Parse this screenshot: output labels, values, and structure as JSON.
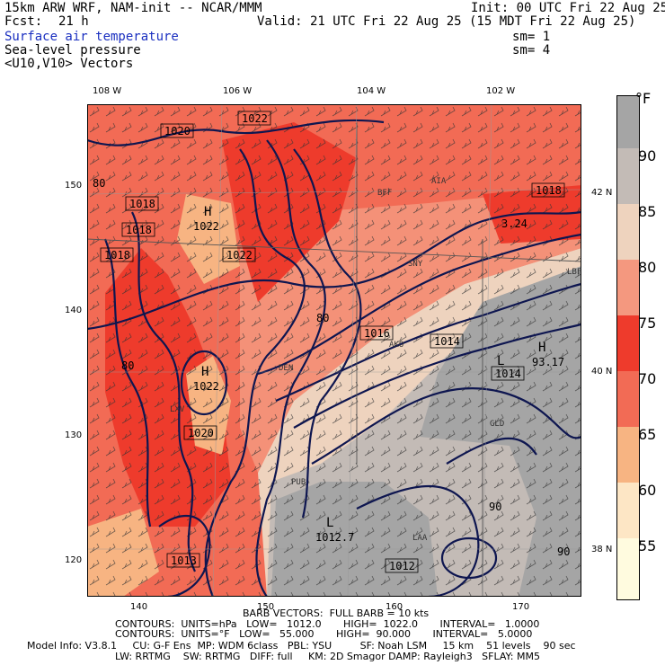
{
  "header": {
    "model": "15km ARW WRF, NAM-init -- NCAR/MMM",
    "init": "Init: 00 UTC Fri 22 Aug 25",
    "fcst_label": "Fcst:",
    "fcst_hours": "21 h",
    "valid": "Valid: 21 UTC Fri 22 Aug 25 (15 MDT Fri 22 Aug 25)",
    "fields": [
      {
        "name": "Surface air temperature",
        "sm": "sm= 1"
      },
      {
        "name": "Sea-level pressure",
        "sm": "sm= 4"
      },
      {
        "name": "<U10,V10> Vectors",
        "sm": ""
      }
    ]
  },
  "axes": {
    "top_lon": [
      "108 W",
      "106 W",
      "104 W",
      "102 W"
    ],
    "bottom_x": [
      "140",
      "150",
      "160",
      "170"
    ],
    "left_y": [
      "150",
      "140",
      "130",
      "120"
    ],
    "right_lat": [
      "42 N",
      "40 N",
      "38 N"
    ]
  },
  "colorbar": {
    "unit": "°F",
    "labels": [
      "90",
      "85",
      "80",
      "75",
      "70",
      "65",
      "60",
      "55"
    ],
    "colors": [
      "#a5a5a5",
      "#c3bbb6",
      "#eed3be",
      "#f4987f",
      "#ee3b2c",
      "#f26b55",
      "#f7b482",
      "#fde6c5",
      "#fffbdf"
    ]
  },
  "map_labels": [
    {
      "text": "1022",
      "boxed": true
    },
    {
      "text": "1020",
      "boxed": true
    },
    {
      "text": "1018",
      "boxed": true
    },
    {
      "text": "1018",
      "boxed": true
    },
    {
      "text": "1018",
      "boxed": true
    },
    {
      "text": "1018",
      "boxed": true
    },
    {
      "text": "1022",
      "boxed": true
    },
    {
      "text": "1016",
      "boxed": true
    },
    {
      "text": "1014",
      "boxed": true
    },
    {
      "text": "1014",
      "boxed": true
    },
    {
      "text": "1020",
      "boxed": true
    },
    {
      "text": "1013",
      "boxed": true
    },
    {
      "text": "1012",
      "boxed": true
    },
    {
      "text": "H",
      "boxed": false
    },
    {
      "text": "1022",
      "boxed": false
    },
    {
      "text": "H",
      "boxed": false
    },
    {
      "text": "1022",
      "boxed": false
    },
    {
      "text": "L",
      "boxed": false
    },
    {
      "text": "1012.7",
      "boxed": false
    },
    {
      "text": "H",
      "boxed": false
    },
    {
      "text": "93.17",
      "boxed": false
    },
    {
      "text": "L",
      "boxed": false
    },
    {
      "text": "80",
      "boxed": false
    },
    {
      "text": "80",
      "boxed": false
    },
    {
      "text": "80",
      "boxed": false
    },
    {
      "text": "90",
      "boxed": false
    },
    {
      "text": "90",
      "boxed": false
    },
    {
      "text": "3.24",
      "boxed": false
    },
    {
      "text": "BFF",
      "boxed": false
    },
    {
      "text": "AIA",
      "boxed": false
    },
    {
      "text": "SNY",
      "boxed": false
    },
    {
      "text": "AKO",
      "boxed": false
    },
    {
      "text": "DEN",
      "boxed": false
    },
    {
      "text": "GLD",
      "boxed": false
    },
    {
      "text": "LAA",
      "boxed": false
    },
    {
      "text": "LXV",
      "boxed": false
    },
    {
      "text": "PUB",
      "boxed": false
    },
    {
      "text": "LBF",
      "boxed": false
    }
  ],
  "footer": {
    "barb": "BARB VECTORS:  FULL BARB = 10 kts",
    "contours1": "CONTOURS:  UNITS=hPa   LOW=   1012.0       HIGH=  1022.0       INTERVAL=   1.0000",
    "contours2": "CONTOURS:  UNITS=°F   LOW=   55.000       HIGH=  90.000       INTERVAL=   5.0000",
    "model_info1": "Model Info: V3.8.1     CU: G-F Ens  MP: WDM 6class   PBL: YSU         SF: Noah LSM     15 km    51 levels    90 sec",
    "model_info2": "LW: RRTMG    SW: RRTMG   DIFF: full     KM: 2D Smagor DAMP: Rayleigh3   SFLAY: MM5"
  }
}
